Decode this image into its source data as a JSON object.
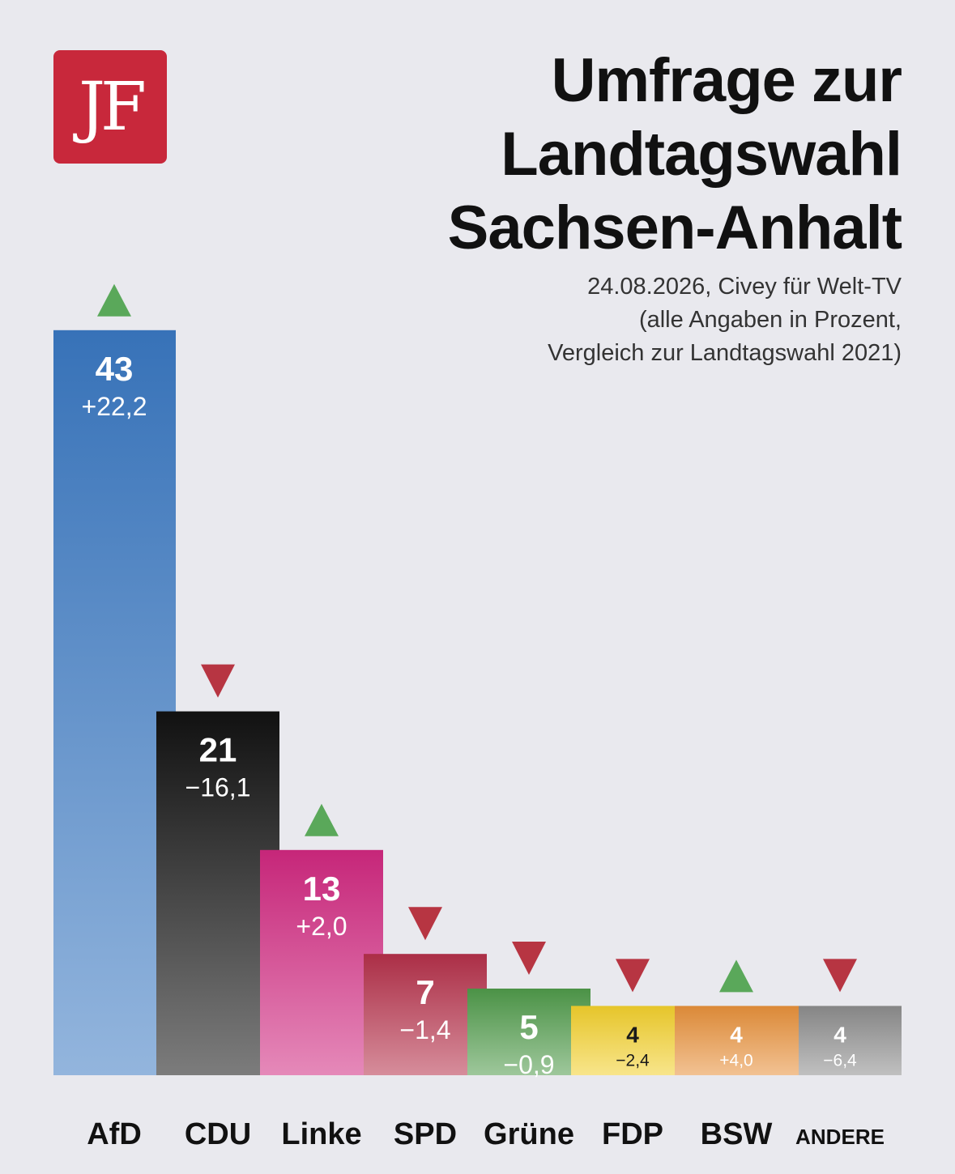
{
  "logo": {
    "text": "JF"
  },
  "header": {
    "title_lines": [
      "Umfrage zur",
      "Landtagswahl",
      "Sachsen-Anhalt"
    ],
    "subtitle_lines": [
      "24.08.2026, Civey für Welt-TV",
      "(alle Angaben in Prozent,",
      "Vergleich zur Landtagswahl 2021)"
    ]
  },
  "chart_data": {
    "type": "bar",
    "title": "Umfrage zur Landtagswahl Sachsen-Anhalt",
    "subtitle": "24.08.2026, Civey für Welt-TV (alle Angaben in Prozent, Vergleich zur Landtagswahl 2021)",
    "categories": [
      "AfD",
      "CDU",
      "Linke",
      "SPD",
      "Grüne",
      "FDP",
      "BSW",
      "ANDERE"
    ],
    "values": [
      43,
      21,
      13,
      7,
      5,
      4,
      4,
      4
    ],
    "changes": [
      "+22,2",
      "−16,1",
      "+2,0",
      "−1,4",
      "−0,9",
      "−2,4",
      "+4,0",
      "−6,4"
    ],
    "trend": [
      "up",
      "down",
      "up",
      "down",
      "down",
      "down",
      "up",
      "down"
    ],
    "colors": [
      "#3a78c2",
      "#111111",
      "#d0287f",
      "#b4304a",
      "#4f9a4a",
      "#f2cf2c",
      "#e7903a",
      "#8c8c8c"
    ],
    "grid": false,
    "legend": "none"
  }
}
